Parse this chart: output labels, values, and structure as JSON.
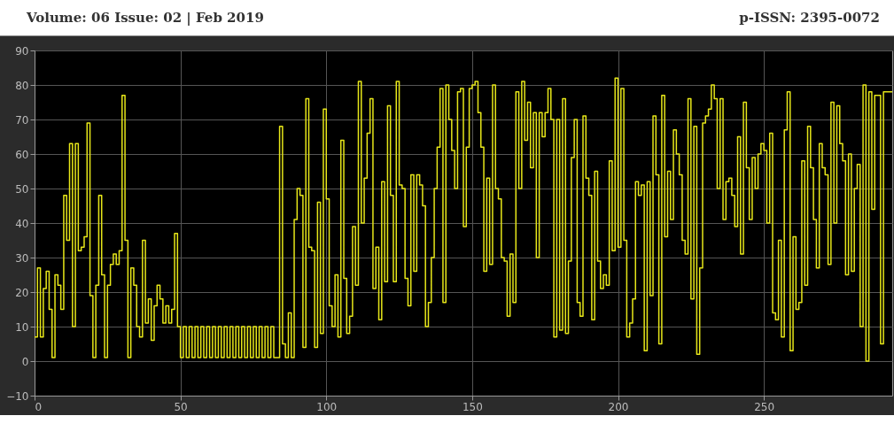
{
  "chart_data": {
    "type": "step",
    "annotations": [
      "Volume: 06 Issue: 02 | Feb 2019",
      "p-ISSN: 2395-0072"
    ],
    "x": [
      0,
      1,
      2,
      3,
      4,
      5,
      6,
      7,
      8,
      9,
      10,
      11,
      12,
      13,
      14,
      15,
      16,
      17,
      18,
      19,
      20,
      21,
      22,
      23,
      24,
      25,
      26,
      27,
      28,
      29,
      30,
      31,
      32,
      33,
      34,
      35,
      36,
      37,
      38,
      39,
      40,
      41,
      42,
      43,
      44,
      45,
      46,
      47,
      48,
      49,
      50,
      51,
      52,
      53,
      54,
      55,
      56,
      57,
      58,
      59,
      60,
      61,
      62,
      63,
      64,
      65,
      66,
      67,
      68,
      69,
      70,
      71,
      72,
      73,
      74,
      75,
      76,
      77,
      78,
      79,
      80,
      81,
      82,
      83,
      84,
      85,
      86,
      87,
      88,
      89,
      90,
      91,
      92,
      93,
      94,
      95,
      96,
      97,
      98,
      99,
      100,
      101,
      102,
      103,
      104,
      105,
      106,
      107,
      108,
      109,
      110,
      111,
      112,
      113,
      114,
      115,
      116,
      117,
      118,
      119,
      120,
      121,
      122,
      123,
      124,
      125,
      126,
      127,
      128,
      129,
      130,
      131,
      132,
      133,
      134,
      135,
      136,
      137,
      138,
      139,
      140,
      141,
      142,
      143,
      144,
      145,
      146,
      147,
      148,
      149,
      150,
      151,
      152,
      153,
      154,
      155,
      156,
      157,
      158,
      159,
      160,
      161,
      162,
      163,
      164,
      165,
      166,
      167,
      168,
      169,
      170,
      171,
      172,
      173,
      174,
      175,
      176,
      177,
      178,
      179,
      180,
      181,
      182,
      183,
      184,
      185,
      186,
      187,
      188,
      189,
      190,
      191,
      192,
      193,
      194,
      195,
      196,
      197,
      198,
      199,
      200,
      201,
      202,
      203,
      204,
      205,
      206,
      207,
      208,
      209,
      210,
      211,
      212,
      213,
      214,
      215,
      216,
      217,
      218,
      219,
      220,
      221,
      222,
      223,
      224,
      225,
      226,
      227,
      228,
      229,
      230,
      231,
      232,
      233,
      234,
      235,
      236,
      237,
      238,
      239,
      240,
      241,
      242,
      243,
      244,
      245,
      246,
      247,
      248,
      249,
      250,
      251,
      252,
      253,
      254,
      255,
      256,
      257,
      258,
      259,
      260,
      261,
      262,
      263,
      264,
      265,
      266,
      267,
      268,
      269,
      270,
      271,
      272,
      273,
      274,
      275,
      276,
      277,
      278,
      279,
      280,
      281,
      282,
      283,
      284,
      285,
      286,
      287,
      288,
      289,
      290,
      291,
      292,
      294
    ],
    "series": [
      {
        "color": "#e6e619",
        "values": [
          7,
          27,
          7,
          21,
          26,
          15,
          1,
          25,
          22,
          15,
          48,
          35,
          63,
          10,
          63,
          32,
          33,
          36,
          69,
          19,
          1,
          22,
          48,
          25,
          1,
          22,
          28,
          31,
          28,
          32,
          77,
          35,
          1,
          27,
          22,
          10,
          7,
          35,
          11,
          18,
          6,
          16,
          22,
          18,
          11,
          16,
          11,
          15,
          37,
          10,
          1,
          10,
          1,
          10,
          1,
          10,
          1,
          10,
          1,
          10,
          1,
          10,
          1,
          10,
          1,
          10,
          1,
          10,
          1,
          10,
          1,
          10,
          1,
          10,
          1,
          10,
          1,
          10,
          1,
          10,
          1,
          10,
          1,
          1,
          68,
          5,
          1,
          14,
          1,
          41,
          50,
          48,
          4,
          76,
          33,
          32,
          4,
          46,
          8,
          73,
          47,
          16,
          10,
          25,
          7,
          64,
          24,
          8,
          13,
          39,
          22,
          81,
          40,
          53,
          66,
          76,
          21,
          33,
          12,
          52,
          23,
          74,
          48,
          23,
          81,
          51,
          50,
          24,
          16,
          54,
          26,
          54,
          51,
          45,
          10,
          17,
          30,
          50,
          62,
          79,
          17,
          80,
          70,
          61,
          50,
          78,
          79,
          39,
          62,
          79,
          80,
          81,
          72,
          62,
          26,
          53,
          28,
          80,
          50,
          47,
          30,
          29,
          13,
          31,
          17,
          78,
          50,
          81,
          64,
          75,
          56,
          72,
          30,
          72,
          65,
          72,
          79,
          70,
          7,
          70,
          9,
          76,
          8,
          29,
          59,
          70,
          17,
          13,
          71,
          53,
          48,
          12,
          55,
          29,
          21,
          25,
          22,
          58,
          32,
          82,
          33,
          79,
          35,
          7,
          11,
          18,
          52,
          48,
          51,
          3,
          52,
          19,
          71,
          54,
          5,
          77,
          36,
          55,
          41,
          67,
          60,
          54,
          35,
          31,
          76,
          18,
          68,
          2,
          27,
          69,
          71,
          73,
          80,
          76,
          50,
          76,
          41,
          52,
          53,
          48,
          39,
          65,
          31,
          75,
          56,
          41,
          59,
          50,
          60,
          63,
          61,
          40,
          66,
          14,
          12,
          35,
          7,
          67,
          78,
          3,
          36,
          15,
          17,
          58,
          22,
          68,
          56,
          41,
          27,
          63,
          56,
          54,
          28,
          75,
          40,
          74,
          63,
          58,
          25,
          60,
          26,
          50,
          57,
          10,
          80,
          0,
          78,
          44,
          77,
          77,
          5,
          78,
          78,
          78
        ]
      }
    ],
    "xlim": [
      0,
      294
    ],
    "xticks": [
      0,
      50,
      100,
      150,
      200,
      250
    ],
    "ylim": [
      -10,
      90
    ],
    "yticks": [
      -10,
      0,
      10,
      20,
      30,
      40,
      50,
      60,
      70,
      80,
      90
    ],
    "grid": true
  }
}
